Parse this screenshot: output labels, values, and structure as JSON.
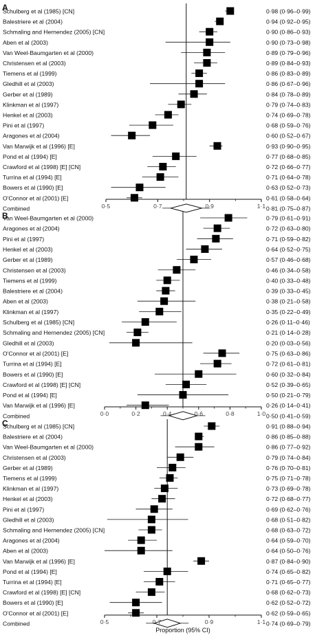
{
  "chart_data": [
    {
      "type": "forest",
      "panel_label": "A",
      "xlim": [
        0.5,
        1.1
      ],
      "xticks": [
        0.5,
        0.7,
        0.9,
        1.1
      ],
      "xtick_labels": [
        "0·5",
        "0·7",
        "0·9",
        "1·1"
      ],
      "reference_line": 0.81,
      "studies": [
        {
          "label": "Schulberg et al (1985) [CN]",
          "est": 0.98,
          "lo": 0.96,
          "hi": 0.99,
          "text": "0·98 (0·96–0·99)"
        },
        {
          "label": "Balestriere et al (2004)",
          "est": 0.94,
          "lo": 0.92,
          "hi": 0.95,
          "text": "0·94 (0·92–0·95)"
        },
        {
          "label": "Schmaling and Hernendez (2005) [CN]",
          "est": 0.9,
          "lo": 0.86,
          "hi": 0.93,
          "text": "0·90 (0·86–0·93)"
        },
        {
          "label": "Aben et al (2003)",
          "est": 0.9,
          "lo": 0.73,
          "hi": 0.98,
          "text": "0·90 (0·73–0·98)"
        },
        {
          "label": "Van Weel-Baumgarten et al (2000)",
          "est": 0.89,
          "lo": 0.79,
          "hi": 0.96,
          "text": "0·89 (0·79–0·96)"
        },
        {
          "label": "Christensen et al (2003)",
          "est": 0.89,
          "lo": 0.84,
          "hi": 0.93,
          "text": "0·89 (0·84–0·93)"
        },
        {
          "label": "Tiemens et al (1999)",
          "est": 0.86,
          "lo": 0.83,
          "hi": 0.89,
          "text": "0·86 (0·83–0·89)"
        },
        {
          "label": "Gledhill et al (2003)",
          "est": 0.86,
          "lo": 0.67,
          "hi": 0.96,
          "text": "0·86 (0·67–0·96)"
        },
        {
          "label": "Gerber et al (1989)",
          "est": 0.84,
          "lo": 0.78,
          "hi": 0.89,
          "text": "0·84 (0·78–0·89)"
        },
        {
          "label": "Klinkman et al (1997)",
          "est": 0.79,
          "lo": 0.74,
          "hi": 0.83,
          "text": "0·79 (0·74–0·83)"
        },
        {
          "label": "Henkel et al (2003)",
          "est": 0.74,
          "lo": 0.69,
          "hi": 0.78,
          "text": "0·74 (0·69–0·78)"
        },
        {
          "label": "Pini et al (1997)",
          "est": 0.68,
          "lo": 0.59,
          "hi": 0.76,
          "text": "0·68 (0·59–0·76)"
        },
        {
          "label": "Aragones et al (2004)",
          "est": 0.6,
          "lo": 0.52,
          "hi": 0.67,
          "text": "0·60 (0·52–0·67)"
        },
        {
          "label": "Van Marwijk et al (1996) [E]",
          "est": 0.93,
          "lo": 0.9,
          "hi": 0.95,
          "text": "0·93 (0·90–0·95)"
        },
        {
          "label": "Pond et al (1994) [E]",
          "est": 0.77,
          "lo": 0.68,
          "hi": 0.85,
          "text": "0·77 (0·68–0·85)"
        },
        {
          "label": "Crawford et al (1998) [E] [CN]",
          "est": 0.72,
          "lo": 0.66,
          "hi": 0.77,
          "text": "0·72 (0·66–0·77)"
        },
        {
          "label": "Turrina et al (1994) [E]",
          "est": 0.71,
          "lo": 0.64,
          "hi": 0.78,
          "text": "0·71 (0·64–0·78)"
        },
        {
          "label": "Bowers et al (1990) [E]",
          "est": 0.63,
          "lo": 0.52,
          "hi": 0.73,
          "text": "0·63 (0·52–0·73)"
        },
        {
          "label": "O'Connor et al (2001) [E]",
          "est": 0.61,
          "lo": 0.58,
          "hi": 0.64,
          "text": "0·61 (0·58–0·64)"
        }
      ],
      "combined": {
        "label": "Combined",
        "est": 0.81,
        "lo": 0.75,
        "hi": 0.87,
        "text": "0·81 (0·75–0·87)"
      }
    },
    {
      "type": "forest",
      "panel_label": "B",
      "xlim": [
        0.0,
        1.0
      ],
      "xticks": [
        0.0,
        0.2,
        0.4,
        0.6,
        0.8,
        1.0
      ],
      "xtick_labels": [
        "0·0",
        "0·2",
        "0·4",
        "0·6",
        "0·8",
        "1·0"
      ],
      "reference_line": 0.5,
      "studies": [
        {
          "label": "Van Weel-Baumgarten et al (2000)",
          "est": 0.79,
          "lo": 0.61,
          "hi": 0.91,
          "text": "0·79 (0·61–0·91)"
        },
        {
          "label": "Aragones et al (2004)",
          "est": 0.72,
          "lo": 0.63,
          "hi": 0.8,
          "text": "0·72 (0·63–0·80)"
        },
        {
          "label": "Pini et al (1997)",
          "est": 0.71,
          "lo": 0.59,
          "hi": 0.82,
          "text": "0·71 (0·59–0·82)"
        },
        {
          "label": "Henkel et al (2003)",
          "est": 0.64,
          "lo": 0.52,
          "hi": 0.75,
          "text": "0·64 (0·52–0·75)"
        },
        {
          "label": "Gerber et al (1989)",
          "est": 0.57,
          "lo": 0.46,
          "hi": 0.68,
          "text": "0·57 (0·46–0·68)"
        },
        {
          "label": "Christensen et al (2003)",
          "est": 0.46,
          "lo": 0.34,
          "hi": 0.58,
          "text": "0·46 (0·34–0·58)"
        },
        {
          "label": "Tiemens et al (1999)",
          "est": 0.4,
          "lo": 0.33,
          "hi": 0.48,
          "text": "0·40 (0·33–0·48)"
        },
        {
          "label": "Balestriere et al (2004)",
          "est": 0.39,
          "lo": 0.33,
          "hi": 0.45,
          "text": "0·39 (0·33–0·45)"
        },
        {
          "label": "Aben et al (2003)",
          "est": 0.38,
          "lo": 0.21,
          "hi": 0.58,
          "text": "0·38 (0·21–0·58)"
        },
        {
          "label": "Klinkman et al (1997)",
          "est": 0.35,
          "lo": 0.22,
          "hi": 0.49,
          "text": "0·35 (0·22–0·49)"
        },
        {
          "label": "Schulberg et al (1985) [CN]",
          "est": 0.26,
          "lo": 0.11,
          "hi": 0.46,
          "text": "0·26 (0·11–0·46)"
        },
        {
          "label": "Schmaling and Hernendez (2005) [CN]",
          "est": 0.21,
          "lo": 0.14,
          "hi": 0.28,
          "text": "0·21 (0·14–0·28)"
        },
        {
          "label": "Gledhill et al (2003)",
          "est": 0.2,
          "lo": 0.03,
          "hi": 0.56,
          "text": "0·20 (0·03–0·56)"
        },
        {
          "label": "O'Connor et al (2001) [E]",
          "est": 0.75,
          "lo": 0.63,
          "hi": 0.86,
          "text": "0·75 (0·63–0·86)"
        },
        {
          "label": "Turrina et al (1994) [E]",
          "est": 0.72,
          "lo": 0.61,
          "hi": 0.81,
          "text": "0·72 (0·61–0·81)"
        },
        {
          "label": "Bowers et al (1990) [E]",
          "est": 0.6,
          "lo": 0.32,
          "hi": 0.84,
          "text": "0·60 (0·32–0·84)"
        },
        {
          "label": "Crawford et al (1998) [E] [CN]",
          "est": 0.52,
          "lo": 0.39,
          "hi": 0.65,
          "text": "0·52 (0·39–0·65)"
        },
        {
          "label": "Pond et al (1994) [E]",
          "est": 0.5,
          "lo": 0.21,
          "hi": 0.79,
          "text": "0·50 (0·21–0·79)"
        },
        {
          "label": "Van Marwijk et al (1996) [E]",
          "est": 0.26,
          "lo": 0.14,
          "hi": 0.41,
          "text": "0·26 (0·14–0·41)"
        }
      ],
      "combined": {
        "label": "Combined",
        "est": 0.5,
        "lo": 0.41,
        "hi": 0.59,
        "text": "0·50 (0·41–0·59)"
      }
    },
    {
      "type": "forest",
      "panel_label": "C",
      "xlim": [
        0.5,
        1.1
      ],
      "xticks": [
        0.5,
        0.7,
        0.9,
        1.1
      ],
      "xtick_labels": [
        "0·5",
        "0·7",
        "0·9",
        "1·1"
      ],
      "xlabel": "Proportion (95% CI)",
      "reference_line": 0.74,
      "studies": [
        {
          "label": "Schulberg et al (1985) [CN]",
          "est": 0.91,
          "lo": 0.88,
          "hi": 0.94,
          "text": "0·91 (0·88–0·94)"
        },
        {
          "label": "Balestriere et al (2004)",
          "est": 0.86,
          "lo": 0.85,
          "hi": 0.88,
          "text": "0·86 (0·85–0·88)"
        },
        {
          "label": "Van Weel-Baumgarten et al (2000)",
          "est": 0.86,
          "lo": 0.77,
          "hi": 0.92,
          "text": "0·86 (0·77–0·92)"
        },
        {
          "label": "Christensen et al (2003)",
          "est": 0.79,
          "lo": 0.74,
          "hi": 0.84,
          "text": "0·79 (0·74–0·84)"
        },
        {
          "label": "Gerber et al (1989)",
          "est": 0.76,
          "lo": 0.7,
          "hi": 0.81,
          "text": "0·76 (0·70–0·81)"
        },
        {
          "label": "Tiemens et al (1999)",
          "est": 0.75,
          "lo": 0.71,
          "hi": 0.78,
          "text": "0·75 (0·71–0·78)"
        },
        {
          "label": "Klinkman et al (1997)",
          "est": 0.73,
          "lo": 0.69,
          "hi": 0.78,
          "text": "0·73 (0·69–0·78)"
        },
        {
          "label": "Henkel et al (2003)",
          "est": 0.72,
          "lo": 0.68,
          "hi": 0.77,
          "text": "0·72 (0·68–0·77)"
        },
        {
          "label": "Pini et al (1997)",
          "est": 0.69,
          "lo": 0.62,
          "hi": 0.76,
          "text": "0·69 (0·62–0·76)"
        },
        {
          "label": "Gledhill et al (2003)",
          "est": 0.68,
          "lo": 0.51,
          "hi": 0.82,
          "text": "0·68 (0·51–0·82)"
        },
        {
          "label": "Schmaling and Hernendez (2005) [CN]",
          "est": 0.68,
          "lo": 0.63,
          "hi": 0.72,
          "text": "0·68 (0·63–0·72)"
        },
        {
          "label": "Aragones et al (2004)",
          "est": 0.64,
          "lo": 0.59,
          "hi": 0.7,
          "text": "0·64 (0·59–0·70)"
        },
        {
          "label": "Aben et al (2003)",
          "est": 0.64,
          "lo": 0.5,
          "hi": 0.76,
          "text": "0·64 (0·50–0·76)"
        },
        {
          "label": "Van Marwijk et al (1996) [E]",
          "est": 0.87,
          "lo": 0.84,
          "hi": 0.9,
          "text": "0·87 (0·84–0·90)"
        },
        {
          "label": "Pond et al (1994) [E]",
          "est": 0.74,
          "lo": 0.65,
          "hi": 0.82,
          "text": "0·74 (0·65–0·82)"
        },
        {
          "label": "Turrina et al (1994) [E]",
          "est": 0.71,
          "lo": 0.65,
          "hi": 0.77,
          "text": "0·71 (0·65–0·77)"
        },
        {
          "label": "Crawford et al (1998) [E] [CN]",
          "est": 0.68,
          "lo": 0.62,
          "hi": 0.73,
          "text": "0·68 (0·62–0·73)"
        },
        {
          "label": "Bowers et al (1990) [E]",
          "est": 0.62,
          "lo": 0.52,
          "hi": 0.72,
          "text": "0·62 (0·52–0·72)"
        },
        {
          "label": "O'Connor et al (2001) [E]",
          "est": 0.62,
          "lo": 0.59,
          "hi": 0.65,
          "text": "0·62 (0·59–0·65)"
        }
      ],
      "combined": {
        "label": "Combined",
        "est": 0.74,
        "lo": 0.69,
        "hi": 0.79,
        "text": "0·74 (0·69–0·79)"
      }
    }
  ],
  "colors": {
    "ink": "#111111",
    "tick": "#444444",
    "marker": "#000000"
  }
}
